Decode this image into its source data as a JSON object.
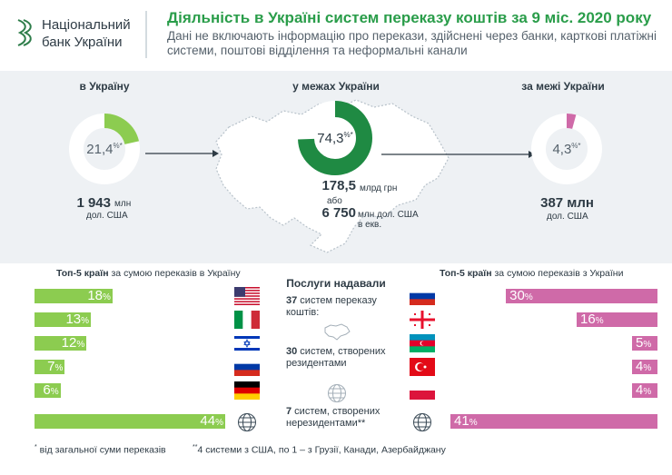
{
  "header": {
    "logo_line1": "Національний",
    "logo_line2": "банк України",
    "title": "Діяльність в Україні систем переказу коштів за 9 міс. 2020 року",
    "subtitle": "Дані не включають інформацію про перекази, здійснені через банки, карткові платіжні системи, поштові відділення та неформальні канали"
  },
  "inbound": {
    "label": "в Україну",
    "percent": "21,4",
    "percent_unit": "%",
    "percent_mark": "*",
    "share": 0.214,
    "amount": "1 943",
    "amount_unit_line1": "млн",
    "amount_unit_line2": "дол. США"
  },
  "domestic": {
    "label": "у межах України",
    "percent": "74,3",
    "percent_unit": "%",
    "percent_mark": "*",
    "share": 0.743,
    "amount_uah": "178,5",
    "amount_uah_unit": "млрд грн",
    "or": "або",
    "amount_usd": "6 750",
    "amount_usd_unit_line1": "млн дол. США",
    "amount_usd_unit_line2": "в екв."
  },
  "outbound": {
    "label": "за межі України",
    "percent": "4,3",
    "percent_unit": "%",
    "percent_mark": "*",
    "share": 0.043,
    "amount": "387 млн",
    "amount_unit": "дол. США"
  },
  "top_in": {
    "title_bold": "Топ-5 країн",
    "title_rest": " за сумою переказів в Україну",
    "rows": [
      {
        "value": 18,
        "label": "18",
        "flag": "usa-flag"
      },
      {
        "value": 13,
        "label": "13",
        "flag": "italy-flag"
      },
      {
        "value": 12,
        "label": "12",
        "flag": "israel-flag"
      },
      {
        "value": 7,
        "label": "7",
        "flag": "russia-flag"
      },
      {
        "value": 6,
        "label": "6",
        "flag": "germany-flag"
      },
      {
        "value": 44,
        "label": "44",
        "flag": "globe-icon"
      }
    ]
  },
  "top_out": {
    "title_bold": "Топ-5 країн",
    "title_rest": " за сумою переказів з України",
    "rows": [
      {
        "value": 30,
        "label": "30",
        "flag": "russia-flag"
      },
      {
        "value": 16,
        "label": "16",
        "flag": "georgia-flag"
      },
      {
        "value": 5,
        "label": "5",
        "flag": "azerbaijan-flag"
      },
      {
        "value": 4,
        "label": "4",
        "flag": "turkey-flag"
      },
      {
        "value": 4,
        "label": "4",
        "flag": "poland-flag"
      },
      {
        "value": 41,
        "label": "41",
        "flag": "globe-icon"
      }
    ]
  },
  "providers": {
    "title": "Послуги надавали",
    "total_bold": "37",
    "total_line1": " систем переказу",
    "total_line2": "коштів:",
    "resident_bold": "30",
    "resident_line1": " систем, створених",
    "resident_line2": "резидентами",
    "nonresident_bold": "7",
    "nonresident_line1": " систем, створених",
    "nonresident_line2": "нерезидентами**"
  },
  "footnotes": {
    "note1_mark": "*",
    "note1": " від загальної суми переказів",
    "note2_mark": "**",
    "note2": "4 системи з США, по 1 – з Грузії, Канади, Азербайджану"
  },
  "colors": {
    "green_title": "#2a9d4a",
    "green_donut_in": "#8ccc50",
    "green_donut_mid": "#1f8a43",
    "pink": "#cf6aa8",
    "bar_green": "#8ccc50",
    "band": "#eef1f4"
  }
}
